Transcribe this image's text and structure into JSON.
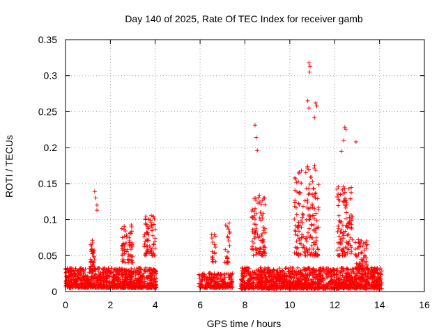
{
  "chart_data": {
    "type": "scatter",
    "title": "Day 140 of 2025, Rate Of TEC Index for receiver gamb",
    "xlabel": "GPS time / hours",
    "ylabel": "ROTI / TECUs",
    "xlim": [
      0,
      16
    ],
    "ylim": [
      0,
      0.35
    ],
    "grid": true,
    "marker": "+",
    "marker_color": "#ff0000",
    "xticks": [
      0,
      2,
      4,
      6,
      8,
      10,
      12,
      14,
      16
    ],
    "xtick_labels": [
      "0",
      "2",
      "4",
      "6",
      "8",
      "10",
      "12",
      "14",
      "16"
    ],
    "yticks": [
      0,
      0.05,
      0.1,
      0.15,
      0.2,
      0.25,
      0.3,
      0.35
    ],
    "ytick_labels": [
      "0",
      "0.05",
      "0.1",
      "0.15",
      "0.2",
      "0.25",
      "0.3",
      "0.35"
    ],
    "data_gaps_hours": [
      [
        4.05,
        5.95
      ]
    ],
    "series": [
      {
        "name": "ROTI",
        "clusters": [
          {
            "x0": 0.0,
            "x1": 4.05,
            "base": 0.005,
            "typ": 0.025,
            "n": 900
          },
          {
            "x0": 1.1,
            "x1": 1.3,
            "base": 0.03,
            "typ": 0.06,
            "n": 40
          },
          {
            "x0": 2.5,
            "x1": 3.0,
            "base": 0.04,
            "typ": 0.08,
            "n": 60
          },
          {
            "x0": 3.5,
            "x1": 4.0,
            "base": 0.05,
            "typ": 0.09,
            "n": 70
          },
          {
            "x0": 5.95,
            "x1": 7.45,
            "base": 0.005,
            "typ": 0.02,
            "n": 230
          },
          {
            "x0": 6.5,
            "x1": 6.7,
            "base": 0.04,
            "typ": 0.07,
            "n": 18
          },
          {
            "x0": 7.1,
            "x1": 7.35,
            "base": 0.04,
            "typ": 0.08,
            "n": 22
          },
          {
            "x0": 7.8,
            "x1": 14.1,
            "base": 0.004,
            "typ": 0.025,
            "n": 1400
          },
          {
            "x0": 8.3,
            "x1": 8.9,
            "base": 0.05,
            "typ": 0.11,
            "n": 90
          },
          {
            "x0": 10.2,
            "x1": 11.3,
            "base": 0.05,
            "typ": 0.14,
            "n": 170
          },
          {
            "x0": 12.1,
            "x1": 12.8,
            "base": 0.05,
            "typ": 0.12,
            "n": 110
          },
          {
            "x0": 12.9,
            "x1": 13.5,
            "base": 0.03,
            "typ": 0.06,
            "n": 60
          }
        ],
        "notable_points": [
          {
            "x": 1.3,
            "y": 0.139
          },
          {
            "x": 1.35,
            "y": 0.13
          },
          {
            "x": 1.4,
            "y": 0.12
          },
          {
            "x": 1.4,
            "y": 0.113
          },
          {
            "x": 8.45,
            "y": 0.231
          },
          {
            "x": 8.5,
            "y": 0.214
          },
          {
            "x": 8.55,
            "y": 0.196
          },
          {
            "x": 10.85,
            "y": 0.318
          },
          {
            "x": 10.9,
            "y": 0.313
          },
          {
            "x": 10.88,
            "y": 0.305
          },
          {
            "x": 10.8,
            "y": 0.265
          },
          {
            "x": 10.85,
            "y": 0.255
          },
          {
            "x": 11.15,
            "y": 0.262
          },
          {
            "x": 11.2,
            "y": 0.258
          },
          {
            "x": 11.1,
            "y": 0.242
          },
          {
            "x": 12.45,
            "y": 0.228
          },
          {
            "x": 12.5,
            "y": 0.225
          },
          {
            "x": 12.4,
            "y": 0.21
          },
          {
            "x": 12.95,
            "y": 0.208
          },
          {
            "x": 12.3,
            "y": 0.195
          }
        ]
      }
    ]
  }
}
